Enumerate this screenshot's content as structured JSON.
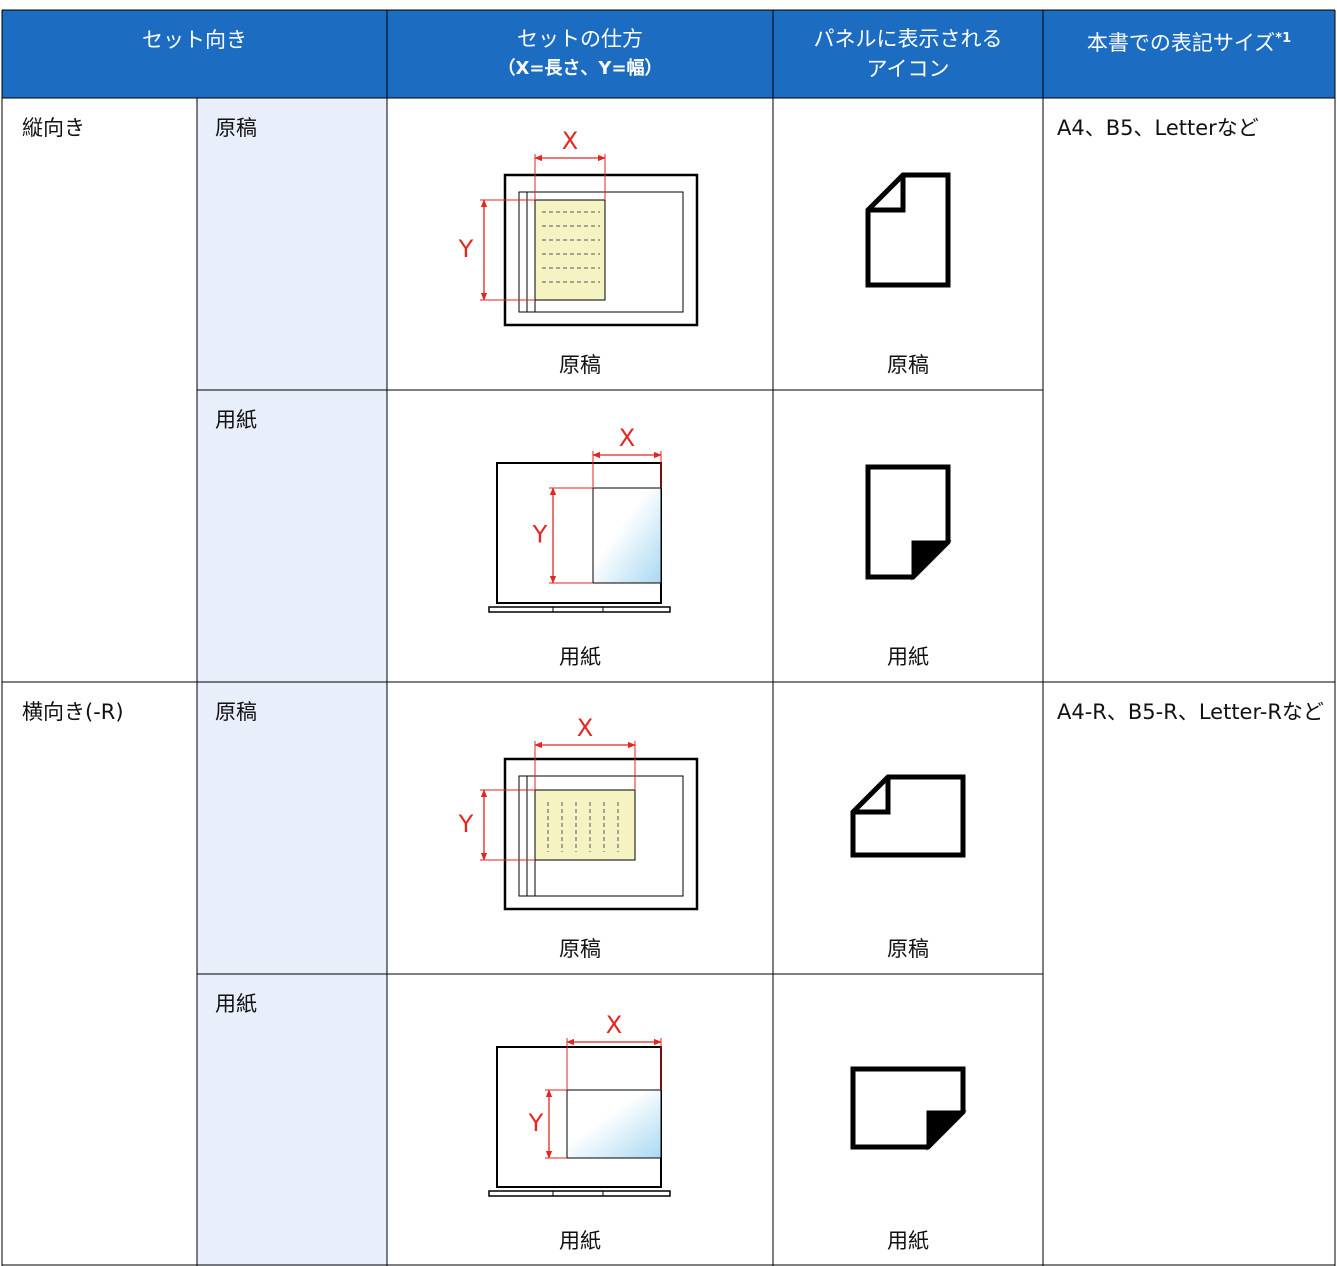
{
  "header": {
    "orientation": "セット向き",
    "method": [
      "セットの仕方",
      "（X=長さ、Y=幅）"
    ],
    "icon": [
      "パネルに表示される",
      "アイコン"
    ],
    "size": "本書での表記サイズ",
    "size_note": "*1"
  },
  "groups": [
    {
      "orientation": "縦向き",
      "size": "A4、B5、Letterなど",
      "rows": [
        {
          "kind": "原稿",
          "x_label": "X",
          "y_label": "Y",
          "method_caption": "原稿",
          "icon_caption": "原稿"
        },
        {
          "kind": "用紙",
          "x_label": "X",
          "y_label": "Y",
          "method_caption": "用紙",
          "icon_caption": "用紙"
        }
      ]
    },
    {
      "orientation": "横向き(-R)",
      "size": "A4-R、B5-R、Letter-Rなど",
      "rows": [
        {
          "kind": "原稿",
          "x_label": "X",
          "y_label": "Y",
          "method_caption": "原稿",
          "icon_caption": "原稿"
        },
        {
          "kind": "用紙",
          "x_label": "X",
          "y_label": "Y",
          "method_caption": "用紙",
          "icon_caption": "用紙"
        }
      ]
    }
  ]
}
